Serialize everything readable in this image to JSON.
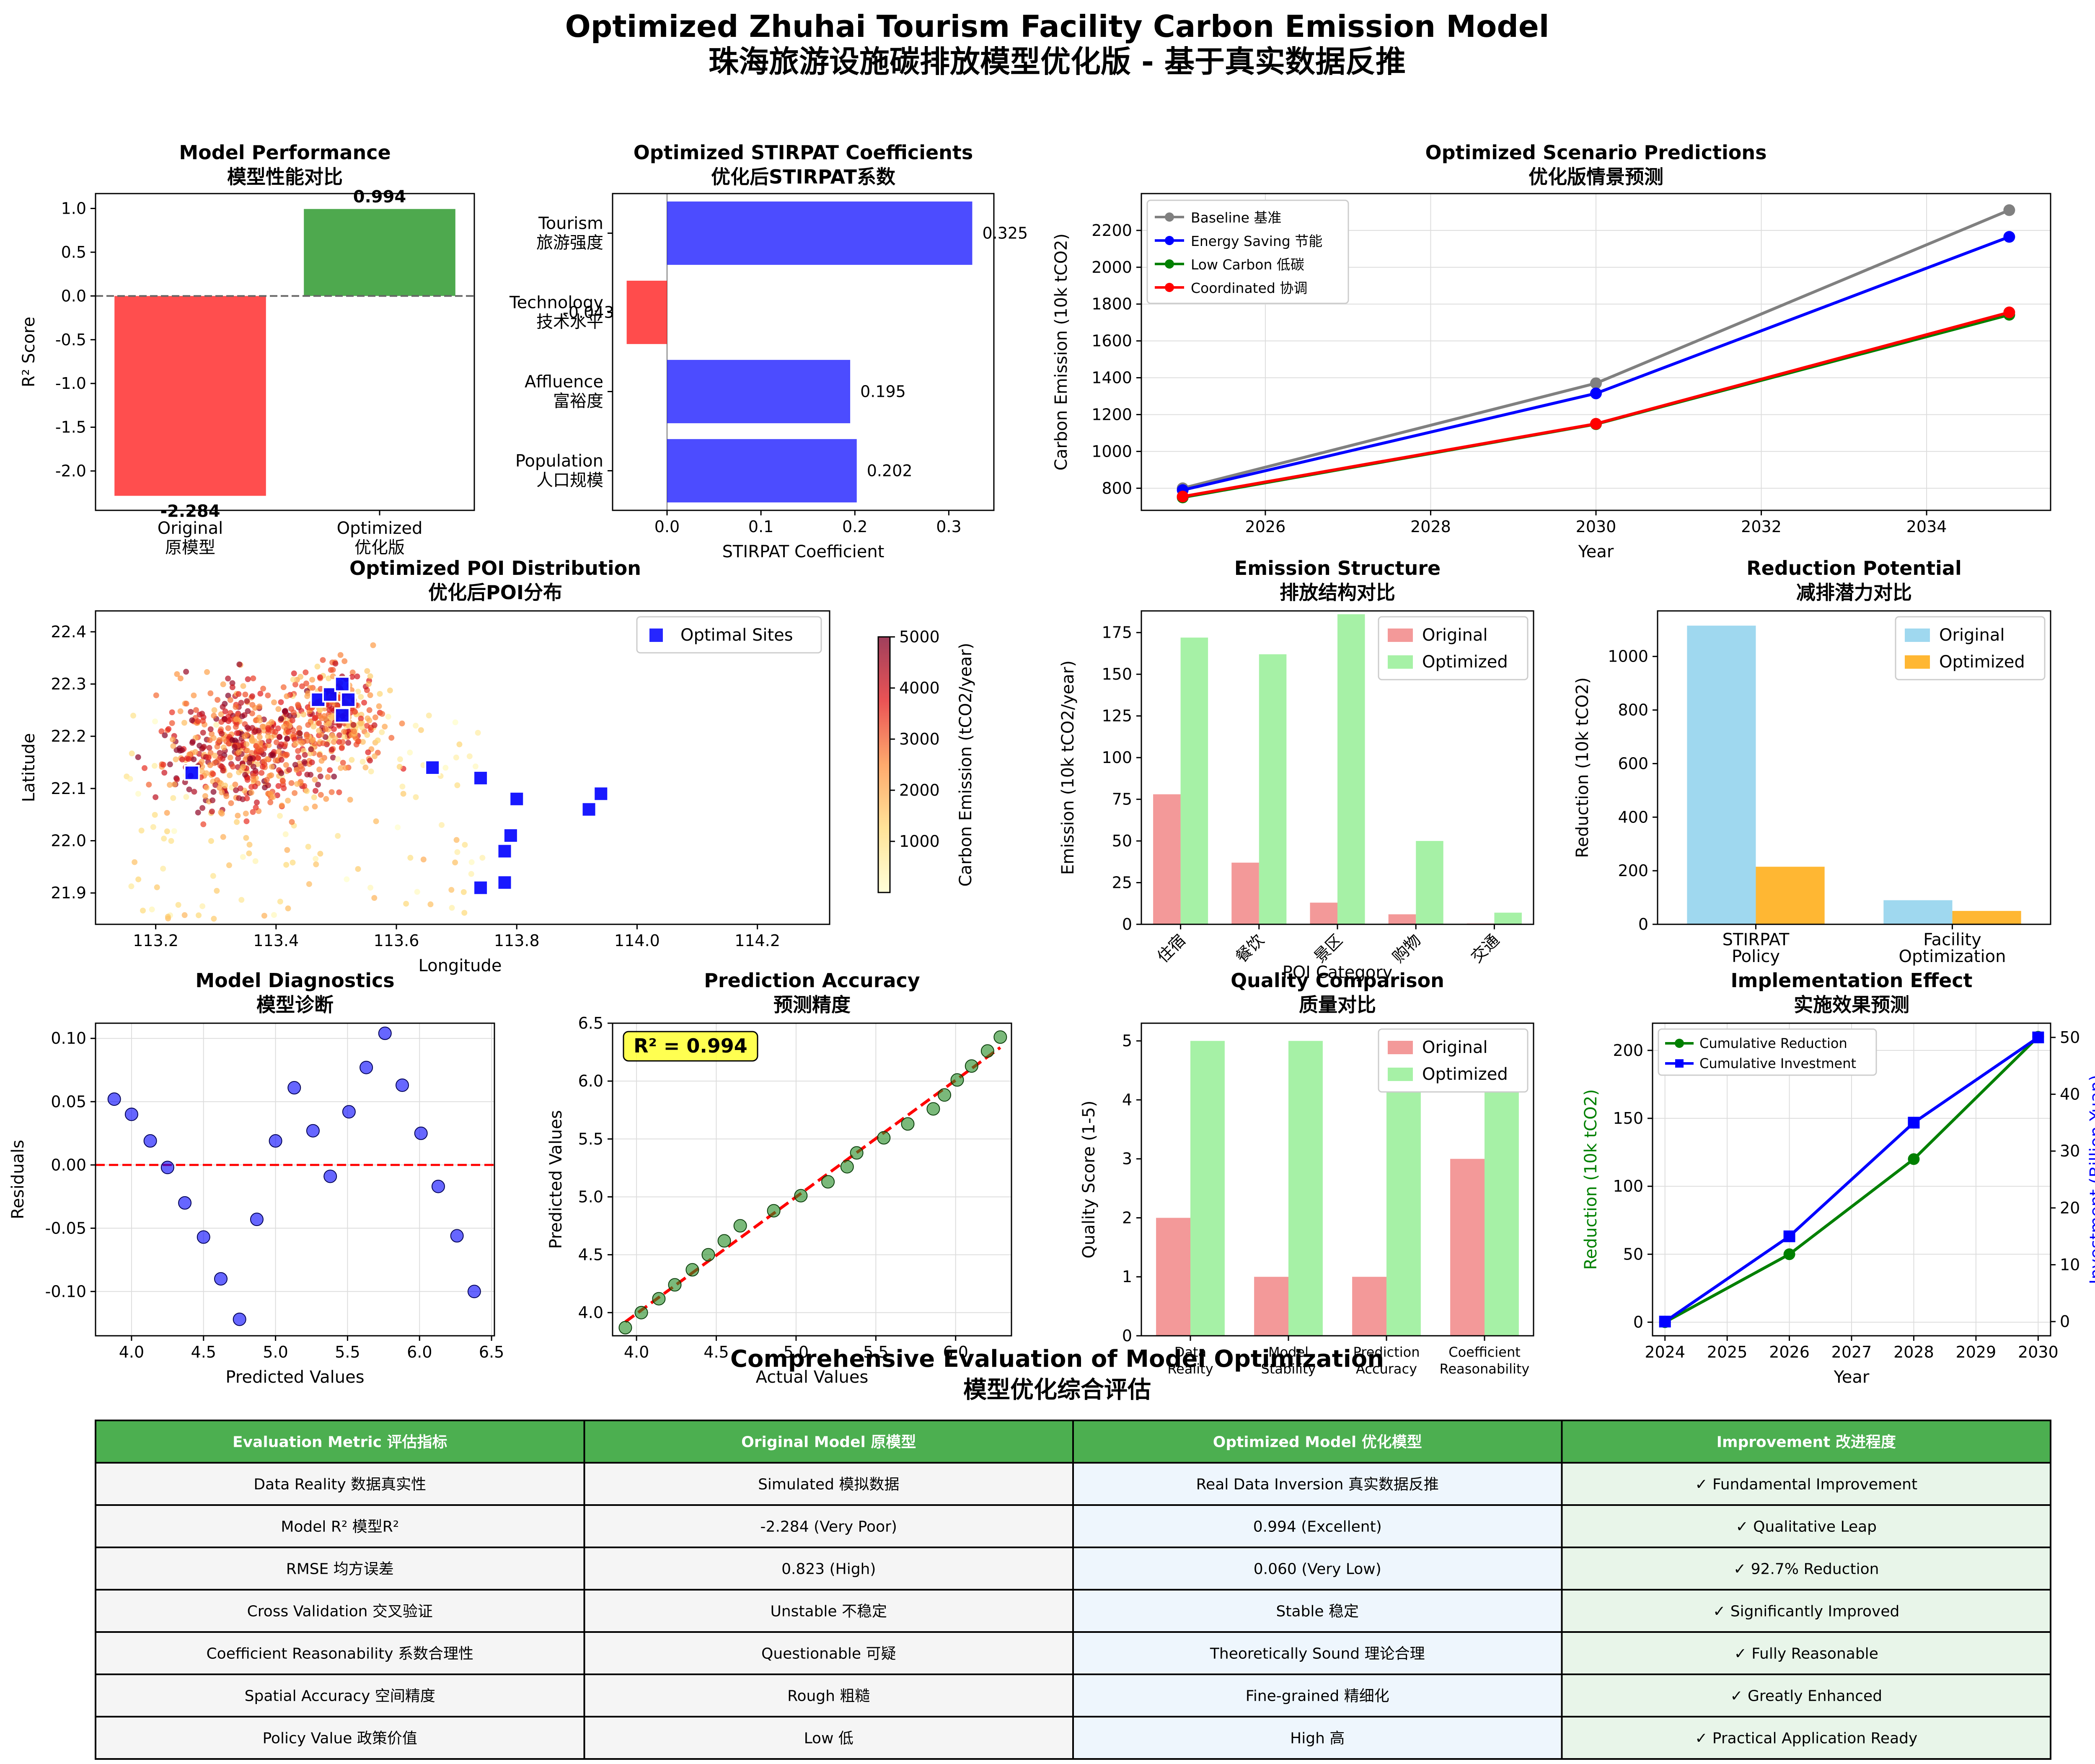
{
  "figure": {
    "title": "Optimized Zhuhai Tourism Facility Carbon Emission Model",
    "subtitle": "珠海旅游设施碳排放模型优化版 - 基于真实数据反推"
  },
  "chart_data": [
    {
      "id": "model_performance",
      "type": "bar",
      "title": "Model Performance",
      "subtitle": "模型性能对比",
      "categories": [
        "Original\n原模型",
        "Optimized\n优化版"
      ],
      "values": [
        -2.284,
        0.994
      ],
      "value_labels": [
        "-2.284",
        "0.994"
      ],
      "colors": [
        "#ff4444",
        "#44a444"
      ],
      "ylabel": "R² Score",
      "ylim": [
        -2.45,
        1.17
      ],
      "yticks": [
        -2.0,
        -1.5,
        -1.0,
        -0.5,
        0.0,
        0.5,
        1.0
      ],
      "yticklabels": [
        "-2.0",
        "-1.5",
        "-1.0",
        "-0.5",
        "0.0",
        "0.5",
        "1.0"
      ],
      "reference_line": 0
    },
    {
      "id": "stirpat_coefficients",
      "type": "bar",
      "orientation": "horizontal",
      "title": "Optimized STIRPAT Coefficients",
      "subtitle": "优化后STIRPAT系数",
      "categories": [
        "Tourism\n旅游强度",
        "Technology\n技术水平",
        "Affluence\n富裕度",
        "Population\n人口规模"
      ],
      "values": [
        0.325,
        -0.043,
        0.195,
        0.202
      ],
      "value_labels": [
        "0.325",
        "-0.043",
        "0.195",
        "0.202"
      ],
      "xlabel": "STIRPAT Coefficient",
      "xlim": [
        -0.058,
        0.348
      ],
      "xticks": [
        0.0,
        0.1,
        0.2,
        0.3
      ],
      "xticklabels": [
        "0.0",
        "0.1",
        "0.2",
        "0.3"
      ]
    },
    {
      "id": "scenario_predictions",
      "type": "line",
      "title": "Optimized Scenario Predictions",
      "subtitle": "优化版情景预测",
      "xlabel": "Year",
      "ylabel": "Carbon Emission (10k tCO2)",
      "x": [
        2025,
        2030,
        2035
      ],
      "xlim": [
        2024.5,
        2035.5
      ],
      "xticks": [
        2026,
        2028,
        2030,
        2032,
        2034
      ],
      "ylim": [
        680,
        2400
      ],
      "yticks": [
        800,
        1000,
        1200,
        1400,
        1600,
        1800,
        2000,
        2200
      ],
      "series": [
        {
          "name": "Baseline 基准",
          "color": "#808080",
          "values": [
            800,
            1370,
            2310
          ]
        },
        {
          "name": "Energy Saving 节能",
          "color": "#0000ff",
          "values": [
            790,
            1315,
            2165
          ]
        },
        {
          "name": "Low Carbon 低碳",
          "color": "#008000",
          "values": [
            750,
            1148,
            1742
          ]
        },
        {
          "name": "Coordinated 协调",
          "color": "#ff0000",
          "values": [
            755,
            1150,
            1755
          ]
        }
      ],
      "grid": true,
      "legend": "upper-left"
    },
    {
      "id": "poi_distribution",
      "type": "scatter",
      "title": "Optimized POI Distribution",
      "subtitle": "优化后POI分布",
      "xlabel": "Longitude",
      "ylabel": "Latitude",
      "xlim": [
        113.1,
        114.32
      ],
      "ylim": [
        21.84,
        22.44
      ],
      "xticks": [
        113.2,
        113.4,
        113.6,
        113.8,
        114.0,
        114.2
      ],
      "yticks": [
        21.9,
        22.0,
        22.1,
        22.2,
        22.3,
        22.4
      ],
      "colorbar_label": "Carbon Emission (tCO2/year)",
      "colorbar_range": [
        0,
        5000
      ],
      "colorbar_ticks": [
        1000,
        2000,
        3000,
        4000,
        5000
      ],
      "legend": "Optimal Sites",
      "optimal_sites": [
        [
          113.26,
          22.13
        ],
        [
          113.47,
          22.27
        ],
        [
          113.49,
          22.28
        ],
        [
          113.51,
          22.3
        ],
        [
          113.52,
          22.27
        ],
        [
          113.51,
          22.24
        ],
        [
          113.66,
          22.14
        ],
        [
          113.74,
          22.12
        ],
        [
          113.8,
          22.08
        ],
        [
          113.79,
          22.01
        ],
        [
          113.78,
          21.98
        ],
        [
          113.78,
          21.92
        ],
        [
          113.74,
          21.91
        ],
        [
          113.92,
          22.06
        ],
        [
          113.94,
          22.09
        ]
      ]
    },
    {
      "id": "emission_structure",
      "type": "bar",
      "title": "Emission Structure",
      "subtitle": "排放结构对比",
      "xlabel": "POI Category",
      "ylabel": "Emission (10k tCO2/year)",
      "categories": [
        "住宿",
        "餐饮",
        "景区",
        "购物",
        "交通"
      ],
      "series": [
        {
          "name": "Original",
          "color": "#f08080",
          "values": [
            78,
            37,
            13,
            6,
            0.5
          ]
        },
        {
          "name": "Optimized",
          "color": "#90ee90",
          "values": [
            172,
            162,
            186,
            50,
            7
          ]
        }
      ],
      "ylim": [
        0,
        188
      ],
      "yticks": [
        0,
        25,
        50,
        75,
        100,
        125,
        150,
        175
      ],
      "legend": "upper-right"
    },
    {
      "id": "reduction_potential",
      "type": "bar",
      "title": "Reduction Potential",
      "subtitle": "减排潜力对比",
      "ylabel": "Reduction (10k tCO2)",
      "categories": [
        "STIRPAT\nPolicy",
        "Facility\nOptimization"
      ],
      "series": [
        {
          "name": "Original",
          "color": "#87ceeb",
          "values": [
            1115,
            90
          ]
        },
        {
          "name": "Optimized",
          "color": "#ffa500",
          "values": [
            215,
            50
          ]
        }
      ],
      "ylim": [
        0,
        1170
      ],
      "yticks": [
        0,
        200,
        400,
        600,
        800,
        1000
      ],
      "legend": "upper-right"
    },
    {
      "id": "model_diagnostics",
      "type": "scatter",
      "title": "Model Diagnostics",
      "subtitle": "模型诊断",
      "xlabel": "Predicted Values",
      "ylabel": "Residuals",
      "x": [
        3.88,
        4.0,
        4.13,
        4.25,
        4.37,
        4.5,
        4.62,
        4.75,
        4.87,
        5.0,
        5.13,
        5.26,
        5.38,
        5.51,
        5.63,
        5.76,
        5.88,
        6.01,
        6.13,
        6.26,
        6.38
      ],
      "values": [
        0.052,
        0.04,
        0.019,
        -0.002,
        -0.03,
        -0.057,
        -0.09,
        -0.122,
        -0.043,
        0.019,
        0.061,
        0.027,
        -0.009,
        0.042,
        0.077,
        0.104,
        0.063,
        0.025,
        -0.017,
        -0.056,
        -0.1
      ],
      "xlim": [
        3.75,
        6.52
      ],
      "ylim": [
        -0.135,
        0.112
      ],
      "xticks": [
        4.0,
        4.5,
        5.0,
        5.5,
        6.0,
        6.5
      ],
      "yticks": [
        -0.1,
        -0.05,
        0.0,
        0.05,
        0.1
      ],
      "yticklabels": [
        "-0.10",
        "-0.05",
        "0.00",
        "0.05",
        "0.10"
      ],
      "reference_line": 0
    },
    {
      "id": "prediction_accuracy",
      "type": "scatter",
      "title": "Prediction Accuracy",
      "subtitle": "预测精度",
      "xlabel": "Actual Values",
      "ylabel": "Predicted Values",
      "annotation": "R² = 0.994",
      "x": [
        3.93,
        4.03,
        4.14,
        4.24,
        4.35,
        4.45,
        4.55,
        4.65,
        4.86,
        5.03,
        5.2,
        5.32,
        5.38,
        5.55,
        5.7,
        5.86,
        5.93,
        6.01,
        6.1,
        6.2,
        6.28
      ],
      "values": [
        3.87,
        4.0,
        4.12,
        4.24,
        4.37,
        4.5,
        4.62,
        4.75,
        4.88,
        5.01,
        5.13,
        5.26,
        5.38,
        5.51,
        5.63,
        5.76,
        5.88,
        6.01,
        6.13,
        6.26,
        6.38
      ],
      "fit_line": [
        [
          3.93,
          3.92
        ],
        [
          6.28,
          6.29
        ]
      ],
      "xlim": [
        3.85,
        6.35
      ],
      "ylim": [
        3.8,
        6.5
      ],
      "xticks": [
        4.0,
        4.5,
        5.0,
        5.5,
        6.0
      ],
      "yticks": [
        4.0,
        4.5,
        5.0,
        5.5,
        6.0,
        6.5
      ]
    },
    {
      "id": "quality_comparison",
      "type": "bar",
      "title": "Quality Comparison",
      "subtitle": "质量对比",
      "ylabel": "Quality Score (1-5)",
      "categories": [
        "Data\nReality",
        "Model\nStability",
        "Prediction\nAccuracy",
        "Coefficient\nReasonability"
      ],
      "series": [
        {
          "name": "Original",
          "color": "#f08080",
          "values": [
            2,
            1,
            1,
            3
          ]
        },
        {
          "name": "Optimized",
          "color": "#90ee90",
          "values": [
            5,
            5,
            5,
            5
          ]
        }
      ],
      "ylim": [
        0,
        5.3
      ],
      "yticks": [
        0,
        1,
        2,
        3,
        4,
        5
      ],
      "legend": "upper-right"
    },
    {
      "id": "implementation_effect",
      "type": "line",
      "title": "Implementation Effect",
      "subtitle": "实施效果预测",
      "xlabel": "Year",
      "ylabel": "Reduction (10k tCO2)",
      "ylabel_right": "Investment (Billion Yuan)",
      "x": [
        2024,
        2026,
        2028,
        2030
      ],
      "xlim": [
        2023.8,
        2030.2
      ],
      "xticks": [
        2024,
        2025,
        2026,
        2027,
        2028,
        2029,
        2030
      ],
      "series": [
        {
          "name": "Cumulative Reduction",
          "color": "#008000",
          "axis": "left",
          "values": [
            0,
            50,
            120,
            210
          ]
        },
        {
          "name": "Cumulative Investment",
          "color": "#0000ff",
          "axis": "right",
          "values": [
            0,
            15,
            35,
            50
          ]
        }
      ],
      "ylim": [
        -10,
        220
      ],
      "yticks": [
        0,
        50,
        100,
        150,
        200
      ],
      "ylim_right": [
        -2.5,
        52.5
      ],
      "yticks_right": [
        0,
        10,
        20,
        30,
        40,
        50
      ],
      "grid": true,
      "legend": "upper-left"
    },
    {
      "id": "evaluation_table",
      "type": "table",
      "title": "Comprehensive Evaluation of Model Optimization",
      "subtitle": "模型优化综合评估",
      "columns": [
        "Evaluation Metric 评估指标",
        "Original Model 原模型",
        "Optimized Model 优化模型",
        "Improvement 改进程度"
      ],
      "rows": [
        [
          "Data Reality 数据真实性",
          "Simulated 模拟数据",
          "Real Data Inversion 真实数据反推",
          "✓ Fundamental Improvement"
        ],
        [
          "Model R² 模型R²",
          "-2.284 (Very Poor)",
          "0.994 (Excellent)",
          "✓ Qualitative Leap"
        ],
        [
          "RMSE 均方误差",
          "0.823 (High)",
          "0.060 (Very Low)",
          "✓ 92.7% Reduction"
        ],
        [
          "Cross Validation 交叉验证",
          "Unstable 不稳定",
          "Stable 稳定",
          "✓ Significantly Improved"
        ],
        [
          "Coefficient Reasonability 系数合理性",
          "Questionable 可疑",
          "Theoretically Sound 理论合理",
          "✓ Fully Reasonable"
        ],
        [
          "Spatial Accuracy 空间精度",
          "Rough 粗糙",
          "Fine-grained 精细化",
          "✓ Greatly Enhanced"
        ],
        [
          "Policy Value 政策价值",
          "Low 低",
          "High 高",
          "✓ Practical Application Ready"
        ]
      ],
      "header_color": "#4caf50",
      "cell_colors": [
        "#f5f5f5",
        "#f5f5f5",
        "#eef6fd",
        "#e8f5e9"
      ]
    }
  ]
}
